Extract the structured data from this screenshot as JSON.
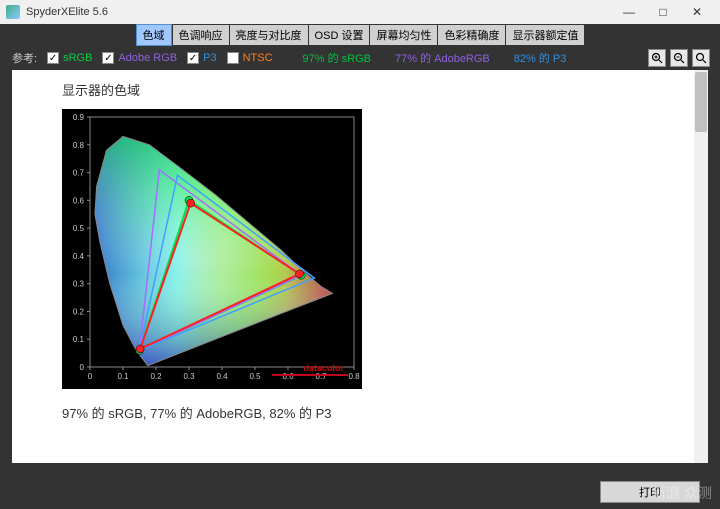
{
  "window": {
    "title": "SpyderXElite 5.6",
    "min": "—",
    "max": "□",
    "close": "✕"
  },
  "tabs": [
    {
      "label": "色域",
      "active": true
    },
    {
      "label": "色调响应",
      "active": false
    },
    {
      "label": "亮度与对比度",
      "active": false
    },
    {
      "label": "OSD 设置",
      "active": false
    },
    {
      "label": "屏幕均匀性",
      "active": false
    },
    {
      "label": "色彩精确度",
      "active": false
    },
    {
      "label": "显示器额定值",
      "active": false
    }
  ],
  "legend": {
    "ref_label": "参考:",
    "items": [
      {
        "label": "sRGB",
        "color": "#00d040",
        "checked": true
      },
      {
        "label": "Adobe RGB",
        "color": "#9060e0",
        "checked": true
      },
      {
        "label": "P3",
        "color": "#3090e0",
        "checked": true
      },
      {
        "label": "NTSC",
        "color": "#ff8020",
        "checked": false
      }
    ],
    "results": [
      {
        "label": "97% 的 sRGB",
        "color": "#00c040"
      },
      {
        "label": "77% 的 AdobeRGB",
        "color": "#9060e0"
      },
      {
        "label": "82% 的 P3",
        "color": "#3090e0"
      }
    ]
  },
  "section": {
    "title": "显示器的色域",
    "summary": "97% 的 sRGB, 77% 的 AdobeRGB, 82% 的 P3"
  },
  "chart": {
    "type": "chromaticity-diagram",
    "background": "#000000",
    "axis_color": "#888888",
    "xlim": [
      0,
      0.8
    ],
    "ylim": [
      0,
      0.9
    ],
    "xtick_step": 0.1,
    "ytick_step": 0.1,
    "xticks": [
      "0",
      "0.1",
      "0.2",
      "0.3",
      "0.4",
      "0.5",
      "0.6",
      "0.7",
      "0.8"
    ],
    "yticks": [
      "0",
      "0.1",
      "0.2",
      "0.3",
      "0.4",
      "0.5",
      "0.6",
      "0.7",
      "0.8",
      "0.9"
    ],
    "spectral_locus": [
      [
        0.175,
        0.005
      ],
      [
        0.14,
        0.06
      ],
      [
        0.1,
        0.15
      ],
      [
        0.06,
        0.3
      ],
      [
        0.03,
        0.45
      ],
      [
        0.015,
        0.55
      ],
      [
        0.02,
        0.65
      ],
      [
        0.05,
        0.78
      ],
      [
        0.1,
        0.83
      ],
      [
        0.18,
        0.8
      ],
      [
        0.27,
        0.72
      ],
      [
        0.38,
        0.62
      ],
      [
        0.5,
        0.5
      ],
      [
        0.58,
        0.42
      ],
      [
        0.65,
        0.34
      ],
      [
        0.7,
        0.29
      ],
      [
        0.735,
        0.265
      ],
      [
        0.175,
        0.005
      ]
    ],
    "gamuts": {
      "sRGB": {
        "color": "#00e050",
        "width": 2,
        "points": [
          [
            0.64,
            0.33
          ],
          [
            0.3,
            0.6
          ],
          [
            0.15,
            0.06
          ]
        ],
        "dots": true
      },
      "AdobeRGB": {
        "color": "#a070ff",
        "width": 1.5,
        "points": [
          [
            0.64,
            0.33
          ],
          [
            0.21,
            0.71
          ],
          [
            0.15,
            0.06
          ]
        ],
        "dots": false
      },
      "P3": {
        "color": "#40a0ff",
        "width": 1.5,
        "points": [
          [
            0.68,
            0.32
          ],
          [
            0.265,
            0.69
          ],
          [
            0.15,
            0.06
          ]
        ],
        "dots": false
      },
      "Display": {
        "color": "#ff2020",
        "width": 2,
        "points": [
          [
            0.635,
            0.335
          ],
          [
            0.305,
            0.59
          ],
          [
            0.152,
            0.065
          ]
        ],
        "dots": true
      }
    },
    "brand": "datacolor"
  },
  "buttons": {
    "print": "打印"
  },
  "watermark": "新浪\n众测"
}
